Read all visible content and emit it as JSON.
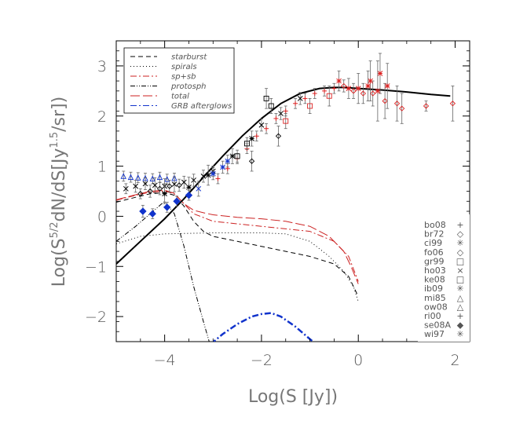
{
  "chart_data": {
    "type": "line",
    "title": "",
    "xlabel": "Log(S [Jy])",
    "ylabel": "Log(S⁵ᐟ²dN/dS[Jy¹·⁵/sr])",
    "ylabel_parts": {
      "prefix": "Log(S",
      "sup1": "5/2",
      "mid": "dN/dS[Jy",
      "sup2": "1.5",
      "suffix": "/sr])"
    },
    "xlim": [
      -5,
      2.3
    ],
    "ylim": [
      -2.5,
      3.5
    ],
    "x_ticks": [
      -4,
      -2,
      0,
      2
    ],
    "x_tick_labels": [
      "−4",
      "−2",
      "0",
      "2"
    ],
    "y_ticks": [
      -2,
      -1,
      0,
      1,
      2,
      3
    ],
    "y_tick_labels": [
      "−2",
      "−1",
      "0",
      "1",
      "2",
      "3"
    ],
    "legend_placement": "top-left",
    "series": [
      {
        "name": "starburst",
        "color": "#000000",
        "dash": "6,4",
        "width": 1,
        "x": [
          -5.0,
          -4.6,
          -4.3,
          -4.0,
          -3.8,
          -3.6,
          -3.4,
          -3.2,
          -3.0,
          -2.5,
          -2.0,
          -1.5,
          -1.0,
          -0.5,
          -0.2,
          0.0
        ],
        "y": [
          0.28,
          0.38,
          0.45,
          0.47,
          0.42,
          0.2,
          -0.1,
          -0.3,
          -0.4,
          -0.5,
          -0.6,
          -0.7,
          -0.8,
          -0.95,
          -1.2,
          -1.6
        ]
      },
      {
        "name": "spirals",
        "color": "#000000",
        "dash": "1,3",
        "width": 1,
        "x": [
          -5.0,
          -4.5,
          -4.0,
          -3.0,
          -2.0,
          -1.5,
          -1.0,
          -0.6,
          -0.3,
          -0.1,
          0.0
        ],
        "y": [
          -0.55,
          -0.4,
          -0.35,
          -0.33,
          -0.33,
          -0.35,
          -0.5,
          -0.8,
          -1.1,
          -1.4,
          -1.7
        ]
      },
      {
        "name": "sp+sb",
        "color": "#cc2222",
        "dash": "8,3,2,3",
        "width": 1,
        "x": [
          -5.0,
          -4.6,
          -4.3,
          -4.0,
          -3.8,
          -3.6,
          -3.4,
          -3.0,
          -2.5,
          -2.0,
          -1.5,
          -1.0,
          -0.5,
          -0.2,
          0.0
        ],
        "y": [
          0.32,
          0.42,
          0.48,
          0.5,
          0.45,
          0.25,
          0.05,
          -0.1,
          -0.15,
          -0.2,
          -0.25,
          -0.3,
          -0.5,
          -0.8,
          -1.3
        ]
      },
      {
        "name": "protosph",
        "color": "#000000",
        "dash": "6,2,1,2,1,2",
        "width": 1,
        "x": [
          -5.0,
          -4.6,
          -4.3,
          -4.0,
          -3.8,
          -3.6,
          -3.4,
          -3.2,
          -3.05
        ],
        "y": [
          -0.5,
          -0.2,
          0.05,
          0.3,
          0.05,
          -0.6,
          -1.4,
          -2.1,
          -2.6
        ]
      },
      {
        "name": "total",
        "color": "#cc2222",
        "dash": "12,4",
        "width": 1,
        "x": [
          -5.0,
          -4.6,
          -4.3,
          -4.0,
          -3.8,
          -3.6,
          -3.4,
          -3.2,
          -3.0,
          -2.5,
          -2.0,
          -1.5,
          -1.0,
          -0.6,
          -0.3,
          -0.15,
          0.0
        ],
        "y": [
          0.33,
          0.43,
          0.5,
          0.52,
          0.46,
          0.25,
          0.12,
          0.07,
          0.03,
          -0.02,
          -0.05,
          -0.1,
          -0.2,
          -0.4,
          -0.7,
          -1.0,
          -1.35
        ]
      },
      {
        "name": "GRB afterglows",
        "color": "#1133cc",
        "dash": "8,3,2,3",
        "width": 2.5,
        "x": [
          -3.05,
          -2.8,
          -2.5,
          -2.2,
          -2.0,
          -1.8,
          -1.6,
          -1.3,
          -1.0,
          -0.8
        ],
        "y": [
          -2.55,
          -2.35,
          -2.15,
          -2.0,
          -1.95,
          -1.93,
          -2.0,
          -2.2,
          -2.45,
          -2.6
        ]
      },
      {
        "name": "",
        "color": "#000000",
        "dash": "",
        "width": 2,
        "x": [
          -5.0,
          -4.5,
          -4.0,
          -3.6,
          -3.2,
          -2.8,
          -2.4,
          -2.0,
          -1.6,
          -1.2,
          -0.8,
          -0.5,
          -0.3,
          0.0,
          0.5,
          1.0,
          1.5,
          1.9
        ],
        "y": [
          -0.95,
          -0.5,
          -0.05,
          0.35,
          0.78,
          1.2,
          1.6,
          1.95,
          2.25,
          2.45,
          2.55,
          2.57,
          2.57,
          2.55,
          2.52,
          2.48,
          2.43,
          2.4
        ]
      }
    ],
    "data_points": [
      {
        "x": -4.85,
        "y": 0.8,
        "e": 0.1,
        "m": "tri",
        "c": "#1133cc"
      },
      {
        "x": -4.7,
        "y": 0.78,
        "e": 0.1,
        "m": "tri",
        "c": "#1133cc"
      },
      {
        "x": -4.55,
        "y": 0.77,
        "e": 0.1,
        "m": "tri",
        "c": "#1133cc"
      },
      {
        "x": -4.4,
        "y": 0.76,
        "e": 0.1,
        "m": "tri",
        "c": "#1133cc"
      },
      {
        "x": -4.25,
        "y": 0.75,
        "e": 0.1,
        "m": "tri",
        "c": "#1133cc"
      },
      {
        "x": -4.1,
        "y": 0.78,
        "e": 0.1,
        "m": "tri",
        "c": "#1133cc"
      },
      {
        "x": -3.95,
        "y": 0.74,
        "e": 0.1,
        "m": "tri",
        "c": "#1133cc"
      },
      {
        "x": -3.8,
        "y": 0.76,
        "e": 0.1,
        "m": "tri",
        "c": "#1133cc"
      },
      {
        "x": -4.8,
        "y": 0.55,
        "e": 0.1,
        "m": "x",
        "c": "#000000"
      },
      {
        "x": -4.6,
        "y": 0.6,
        "e": 0.12,
        "m": "x",
        "c": "#000000"
      },
      {
        "x": -4.4,
        "y": 0.65,
        "e": 0.12,
        "m": "x",
        "c": "#000000"
      },
      {
        "x": -4.2,
        "y": 0.62,
        "e": 0.15,
        "m": "x",
        "c": "#000000"
      },
      {
        "x": -4.0,
        "y": 0.6,
        "e": 0.15,
        "m": "x",
        "c": "#000000"
      },
      {
        "x": -3.8,
        "y": 0.64,
        "e": 0.15,
        "m": "x",
        "c": "#000000"
      },
      {
        "x": -3.6,
        "y": 0.68,
        "e": 0.12,
        "m": "x",
        "c": "#000000"
      },
      {
        "x": -3.4,
        "y": 0.72,
        "e": 0.12,
        "m": "x",
        "c": "#000000"
      },
      {
        "x": -3.2,
        "y": 0.8,
        "e": 0.12,
        "m": "x",
        "c": "#000000"
      },
      {
        "x": -3.0,
        "y": 0.9,
        "e": 0.1,
        "m": "x",
        "c": "#000000"
      },
      {
        "x": -4.5,
        "y": 0.45,
        "e": 0.1,
        "m": "diamond",
        "c": "#000000"
      },
      {
        "x": -4.3,
        "y": 0.5,
        "e": 0.12,
        "m": "diamond",
        "c": "#000000"
      },
      {
        "x": -4.1,
        "y": 0.55,
        "e": 0.12,
        "m": "diamond",
        "c": "#000000"
      },
      {
        "x": -3.9,
        "y": 0.6,
        "e": 0.12,
        "m": "diamond",
        "c": "#000000"
      },
      {
        "x": -3.7,
        "y": 0.62,
        "e": 0.12,
        "m": "diamond",
        "c": "#000000"
      },
      {
        "x": -4.0,
        "y": 0.45,
        "e": 0.2,
        "m": "ast",
        "c": "#000000"
      },
      {
        "x": -3.5,
        "y": 0.58,
        "e": 0.2,
        "m": "ast",
        "c": "#000000"
      },
      {
        "x": -3.1,
        "y": 0.82,
        "e": 0.2,
        "m": "ast",
        "c": "#000000"
      },
      {
        "x": -2.6,
        "y": 1.2,
        "e": 0.15,
        "m": "ast",
        "c": "#000000"
      },
      {
        "x": -2.2,
        "y": 1.55,
        "e": 0.15,
        "m": "ast",
        "c": "#000000"
      },
      {
        "x": -4.45,
        "y": 0.1,
        "e": 0.12,
        "m": "bdiamond",
        "c": "#1133cc"
      },
      {
        "x": -4.25,
        "y": 0.05,
        "e": 0.1,
        "m": "bdiamond",
        "c": "#1133cc"
      },
      {
        "x": -3.95,
        "y": 0.18,
        "e": 0.1,
        "m": "bdiamond",
        "c": "#1133cc"
      },
      {
        "x": -3.75,
        "y": 0.3,
        "e": 0.1,
        "m": "bdiamond",
        "c": "#1133cc"
      },
      {
        "x": -3.5,
        "y": 0.42,
        "e": 0.1,
        "m": "bdiamond",
        "c": "#1133cc"
      },
      {
        "x": -3.3,
        "y": 0.55,
        "e": 0.15,
        "m": "x",
        "c": "#1133cc"
      },
      {
        "x": -3.0,
        "y": 0.85,
        "e": 0.12,
        "m": "ast",
        "c": "#1133cc"
      },
      {
        "x": -2.8,
        "y": 0.98,
        "e": 0.12,
        "m": "ast",
        "c": "#1133cc"
      },
      {
        "x": -2.7,
        "y": 1.1,
        "e": 0.12,
        "m": "ast",
        "c": "#1133cc"
      },
      {
        "x": -2.9,
        "y": 0.75,
        "e": 0.1,
        "m": "plus",
        "c": "#dd2222"
      },
      {
        "x": -2.7,
        "y": 0.95,
        "e": 0.1,
        "m": "plus",
        "c": "#dd2222"
      },
      {
        "x": -2.5,
        "y": 1.15,
        "e": 0.1,
        "m": "plus",
        "c": "#dd2222"
      },
      {
        "x": -2.3,
        "y": 1.35,
        "e": 0.1,
        "m": "plus",
        "c": "#dd2222"
      },
      {
        "x": -2.1,
        "y": 1.6,
        "e": 0.1,
        "m": "plus",
        "c": "#dd2222"
      },
      {
        "x": -1.9,
        "y": 1.75,
        "e": 0.1,
        "m": "plus",
        "c": "#dd2222"
      },
      {
        "x": -1.7,
        "y": 1.95,
        "e": 0.1,
        "m": "plus",
        "c": "#dd2222"
      },
      {
        "x": -1.5,
        "y": 2.1,
        "e": 0.1,
        "m": "plus",
        "c": "#dd2222"
      },
      {
        "x": -1.3,
        "y": 2.25,
        "e": 0.1,
        "m": "plus",
        "c": "#dd2222"
      },
      {
        "x": -1.1,
        "y": 2.35,
        "e": 0.1,
        "m": "plus",
        "c": "#dd2222"
      },
      {
        "x": -0.9,
        "y": 2.45,
        "e": 0.1,
        "m": "plus",
        "c": "#dd2222"
      },
      {
        "x": -0.7,
        "y": 2.5,
        "e": 0.1,
        "m": "plus",
        "c": "#dd2222"
      },
      {
        "x": -0.5,
        "y": 2.55,
        "e": 0.1,
        "m": "plus",
        "c": "#dd2222"
      },
      {
        "x": -2.0,
        "y": 1.82,
        "e": 0.12,
        "m": "x",
        "c": "#000000"
      },
      {
        "x": -1.6,
        "y": 2.05,
        "e": 0.12,
        "m": "x",
        "c": "#000000"
      },
      {
        "x": -1.2,
        "y": 2.35,
        "e": 0.12,
        "m": "x",
        "c": "#000000"
      },
      {
        "x": -2.5,
        "y": 1.2,
        "e": 0.12,
        "m": "square",
        "c": "#000000"
      },
      {
        "x": -2.3,
        "y": 1.45,
        "e": 0.12,
        "m": "square",
        "c": "#000000"
      },
      {
        "x": -1.9,
        "y": 2.35,
        "e": 0.2,
        "m": "square",
        "c": "#000000"
      },
      {
        "x": -1.8,
        "y": 2.2,
        "e": 0.15,
        "m": "square",
        "c": "#000000"
      },
      {
        "x": -1.5,
        "y": 1.9,
        "e": 0.15,
        "m": "square",
        "c": "#dd2222"
      },
      {
        "x": -1.0,
        "y": 2.2,
        "e": 0.15,
        "m": "square",
        "c": "#dd2222"
      },
      {
        "x": -0.6,
        "y": 2.4,
        "e": 0.2,
        "m": "square",
        "c": "#dd2222"
      },
      {
        "x": -2.2,
        "y": 1.1,
        "e": 0.2,
        "m": "diamond",
        "c": "#000000"
      },
      {
        "x": -1.65,
        "y": 1.6,
        "e": 0.2,
        "m": "diamond",
        "c": "#000000"
      },
      {
        "x": -0.3,
        "y": 2.6,
        "e": 0.12,
        "m": "rdiamond",
        "c": "#dd2222"
      },
      {
        "x": -0.1,
        "y": 2.5,
        "e": 0.15,
        "m": "rdiamond",
        "c": "#dd2222"
      },
      {
        "x": 0.1,
        "y": 2.45,
        "e": 0.2,
        "m": "rdiamond",
        "c": "#dd2222"
      },
      {
        "x": 0.3,
        "y": 2.45,
        "e": 0.25,
        "m": "rdiamond",
        "c": "#dd2222"
      },
      {
        "x": 0.55,
        "y": 2.3,
        "e": 0.35,
        "m": "rdiamond",
        "c": "#dd2222"
      },
      {
        "x": 0.8,
        "y": 2.25,
        "e": 0.35,
        "m": "rdiamond",
        "c": "#dd2222"
      },
      {
        "x": 0.9,
        "y": 2.15,
        "e": 0.3,
        "m": "rdiamond",
        "c": "#dd2222"
      },
      {
        "x": 1.4,
        "y": 2.2,
        "e": 0.1,
        "m": "rdiamond",
        "c": "#dd2222"
      },
      {
        "x": 1.95,
        "y": 2.25,
        "e": 0.35,
        "m": "rdiamond",
        "c": "#dd2222"
      },
      {
        "x": -0.4,
        "y": 2.7,
        "e": 0.2,
        "m": "ast",
        "c": "#dd2222"
      },
      {
        "x": 0.0,
        "y": 2.55,
        "e": 0.3,
        "m": "ast",
        "c": "#dd2222"
      },
      {
        "x": 0.25,
        "y": 2.7,
        "e": 0.4,
        "m": "ast",
        "c": "#dd2222"
      },
      {
        "x": 0.45,
        "y": 2.85,
        "e": 0.4,
        "m": "ast",
        "c": "#dd2222"
      },
      {
        "x": 0.6,
        "y": 2.6,
        "e": 0.45,
        "m": "ast",
        "c": "#dd2222"
      },
      {
        "x": 0.4,
        "y": 2.5,
        "e": 0.6,
        "m": "ast",
        "c": "#dd2222"
      },
      {
        "x": 0.2,
        "y": 2.6,
        "e": 0.3,
        "m": "ast",
        "c": "#dd2222"
      },
      {
        "x": -0.2,
        "y": 2.55,
        "e": 0.2,
        "m": "ast",
        "c": "#dd2222"
      }
    ],
    "legend": [
      {
        "label": "starburst",
        "color": "#000000",
        "dash": "6,4"
      },
      {
        "label": "spirals",
        "color": "#000000",
        "dash": "1,3"
      },
      {
        "label": "sp+sb",
        "color": "#cc2222",
        "dash": "8,3,2,3"
      },
      {
        "label": "protosph",
        "color": "#000000",
        "dash": "6,2,1,2,1,2"
      },
      {
        "label": "total",
        "color": "#cc2222",
        "dash": "12,4"
      },
      {
        "label": "GRB afterglows",
        "color": "#1133cc",
        "dash": "8,3,2,3"
      }
    ],
    "marker_key": [
      {
        "label": "bo08",
        "marker": "+",
        "color": "#dd2222"
      },
      {
        "label": "br72",
        "marker": "◇",
        "color": "#dd2222"
      },
      {
        "label": "ci99",
        "marker": "✳",
        "color": "#000000"
      },
      {
        "label": "fo06",
        "marker": "◇",
        "color": "#000000"
      },
      {
        "label": "gr99",
        "marker": "□",
        "color": "#dd2222"
      },
      {
        "label": "ho03",
        "marker": "×",
        "color": "#000000"
      },
      {
        "label": "ke08",
        "marker": "□",
        "color": "#000000"
      },
      {
        "label": "ib09",
        "marker": "✳",
        "color": "#1133cc"
      },
      {
        "label": "mi85",
        "marker": "△",
        "color": "#000000"
      },
      {
        "label": "ow08",
        "marker": "△",
        "color": "#1133cc"
      },
      {
        "label": "ri00",
        "marker": "+",
        "color": "#dd2222"
      },
      {
        "label": "se08A",
        "marker": "◆",
        "color": "#1133cc"
      },
      {
        "label": "wi97",
        "marker": "✳",
        "color": "#dd2222"
      }
    ]
  }
}
